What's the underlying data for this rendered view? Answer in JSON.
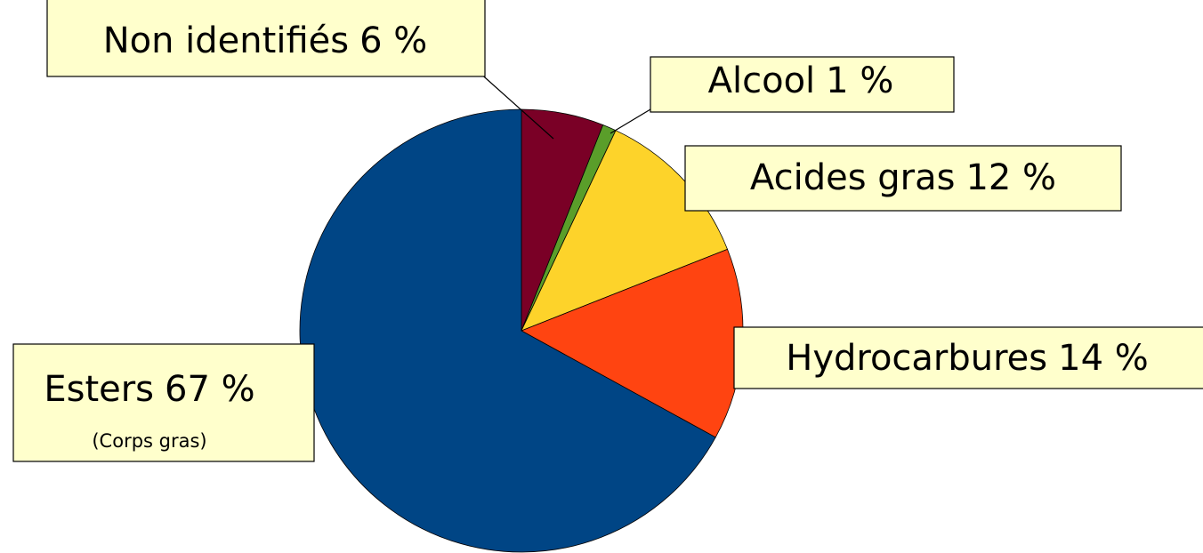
{
  "chart_data": {
    "type": "pie",
    "categories": [
      "Non identifiés",
      "Alcool",
      "Acides gras",
      "Hydrocarbures",
      "Esters"
    ],
    "values": [
      6,
      1,
      12,
      14,
      67
    ],
    "value_labels": [
      "6 %",
      "1 %",
      "12 %",
      "14 %",
      "67 %"
    ],
    "colors": [
      "#7a0026",
      "#5a9e2a",
      "#fdd32a",
      "#ff4411",
      "#004585"
    ],
    "annotation": "(Corps gras)"
  }
}
